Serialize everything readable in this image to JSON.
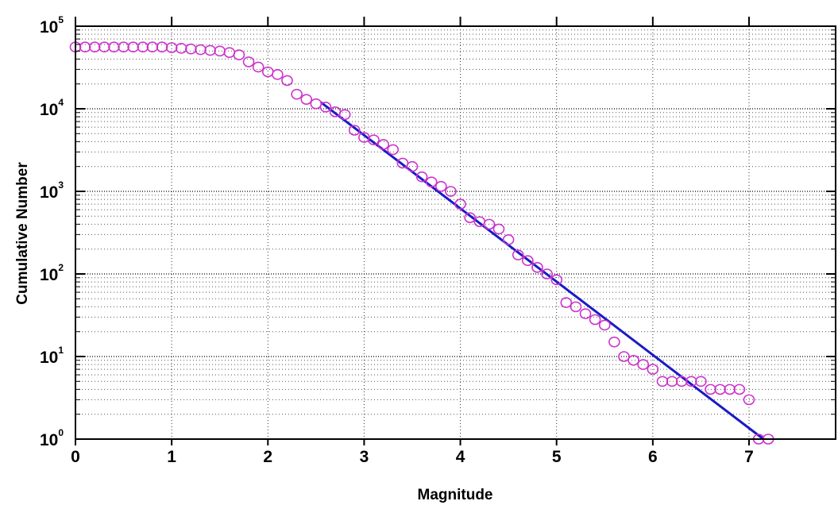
{
  "chart_data": {
    "type": "scatter",
    "title": "",
    "xlabel": "Magnitude",
    "ylabel": "Cumulative Number",
    "xlim": [
      0,
      7.9
    ],
    "ylim": [
      1,
      100000
    ],
    "yscale": "log",
    "grid": true,
    "legend": "none",
    "x_ticks": [
      "0",
      "1",
      "2",
      "3",
      "4",
      "5",
      "6",
      "7"
    ],
    "y_ticks": [
      {
        "base": "10",
        "exp": "0"
      },
      {
        "base": "10",
        "exp": "1"
      },
      {
        "base": "10",
        "exp": "2"
      },
      {
        "base": "10",
        "exp": "3"
      },
      {
        "base": "10",
        "exp": "4"
      },
      {
        "base": "10",
        "exp": "5"
      }
    ],
    "series": [
      {
        "type": "scatter",
        "marker": "circle",
        "color": "#cc33cc",
        "points": [
          [
            0.0,
            56000
          ],
          [
            0.1,
            56000
          ],
          [
            0.2,
            56000
          ],
          [
            0.3,
            56000
          ],
          [
            0.4,
            56000
          ],
          [
            0.5,
            56000
          ],
          [
            0.6,
            56000
          ],
          [
            0.7,
            56000
          ],
          [
            0.8,
            56000
          ],
          [
            0.9,
            56000
          ],
          [
            1.0,
            55000
          ],
          [
            1.1,
            54000
          ],
          [
            1.2,
            53000
          ],
          [
            1.3,
            52000
          ],
          [
            1.4,
            51000
          ],
          [
            1.5,
            50000
          ],
          [
            1.6,
            48000
          ],
          [
            1.7,
            45000
          ],
          [
            1.8,
            37000
          ],
          [
            1.9,
            32000
          ],
          [
            2.0,
            28000
          ],
          [
            2.1,
            26000
          ],
          [
            2.2,
            22000
          ],
          [
            2.3,
            15000
          ],
          [
            2.4,
            13000
          ],
          [
            2.5,
            11500
          ],
          [
            2.6,
            10500
          ],
          [
            2.7,
            9200
          ],
          [
            2.8,
            8500
          ],
          [
            2.9,
            5500
          ],
          [
            3.0,
            4500
          ],
          [
            3.1,
            4200
          ],
          [
            3.2,
            3700
          ],
          [
            3.3,
            3200
          ],
          [
            3.4,
            2200
          ],
          [
            3.5,
            2000
          ],
          [
            3.6,
            1500
          ],
          [
            3.7,
            1300
          ],
          [
            3.8,
            1150
          ],
          [
            3.9,
            1000
          ],
          [
            4.0,
            700
          ],
          [
            4.1,
            480
          ],
          [
            4.2,
            430
          ],
          [
            4.3,
            400
          ],
          [
            4.4,
            350
          ],
          [
            4.5,
            260
          ],
          [
            4.6,
            170
          ],
          [
            4.7,
            145
          ],
          [
            4.8,
            120
          ],
          [
            4.9,
            100
          ],
          [
            5.0,
            85
          ],
          [
            5.1,
            45
          ],
          [
            5.2,
            40
          ],
          [
            5.3,
            33
          ],
          [
            5.4,
            28
          ],
          [
            5.5,
            24
          ],
          [
            5.6,
            15
          ],
          [
            5.7,
            10
          ],
          [
            5.8,
            9
          ],
          [
            5.9,
            8
          ],
          [
            6.0,
            7
          ],
          [
            6.1,
            5
          ],
          [
            6.2,
            5
          ],
          [
            6.3,
            5
          ],
          [
            6.4,
            5
          ],
          [
            6.5,
            5
          ],
          [
            6.6,
            4
          ],
          [
            6.7,
            4
          ],
          [
            6.8,
            4
          ],
          [
            6.9,
            4
          ],
          [
            7.0,
            3
          ],
          [
            7.1,
            1
          ],
          [
            7.2,
            1
          ]
        ]
      },
      {
        "type": "line",
        "color": "#1a1ac8",
        "points": [
          [
            2.55,
            12000
          ],
          [
            7.15,
            1
          ]
        ]
      }
    ]
  }
}
